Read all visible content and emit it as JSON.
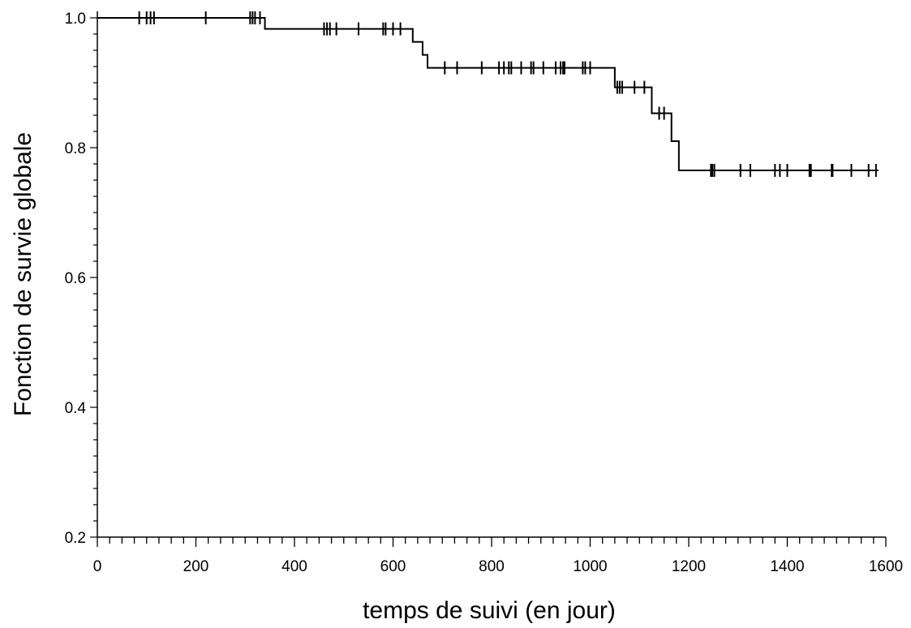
{
  "chart_data": {
    "type": "line",
    "title": "",
    "xlabel": "temps de suivi (en jour)",
    "ylabel": "Fonction de survie globale",
    "xlim": [
      0,
      1600
    ],
    "ylim": [
      0.2,
      1.0
    ],
    "x_ticks": [
      "0",
      "200",
      "400",
      "600",
      "800",
      "1000",
      "1200",
      "1400",
      "1600"
    ],
    "y_ticks": [
      "0.2",
      "0.4",
      "0.6",
      "0.8",
      "1.0"
    ],
    "x_minor_step": 25,
    "grid": false,
    "legend": "none",
    "series": [
      {
        "step": true,
        "x": [
          0,
          340,
          640,
          660,
          670,
          1050,
          1125,
          1165,
          1180,
          1585
        ],
        "y": [
          1.0,
          0.983,
          0.963,
          0.943,
          0.923,
          0.893,
          0.853,
          0.81,
          0.765,
          0.765
        ],
        "censored_x": [
          85,
          100,
          108,
          115,
          220,
          310,
          315,
          320,
          330,
          460,
          466,
          472,
          485,
          530,
          580,
          585,
          600,
          615,
          705,
          730,
          780,
          815,
          825,
          835,
          840,
          860,
          880,
          885,
          905,
          930,
          940,
          945,
          948,
          985,
          990,
          1000,
          1055,
          1060,
          1065,
          1090,
          1110,
          1140,
          1150,
          1245,
          1248,
          1252,
          1305,
          1325,
          1375,
          1385,
          1400,
          1445,
          1448,
          1490,
          1492,
          1530,
          1565,
          1580
        ]
      }
    ]
  }
}
